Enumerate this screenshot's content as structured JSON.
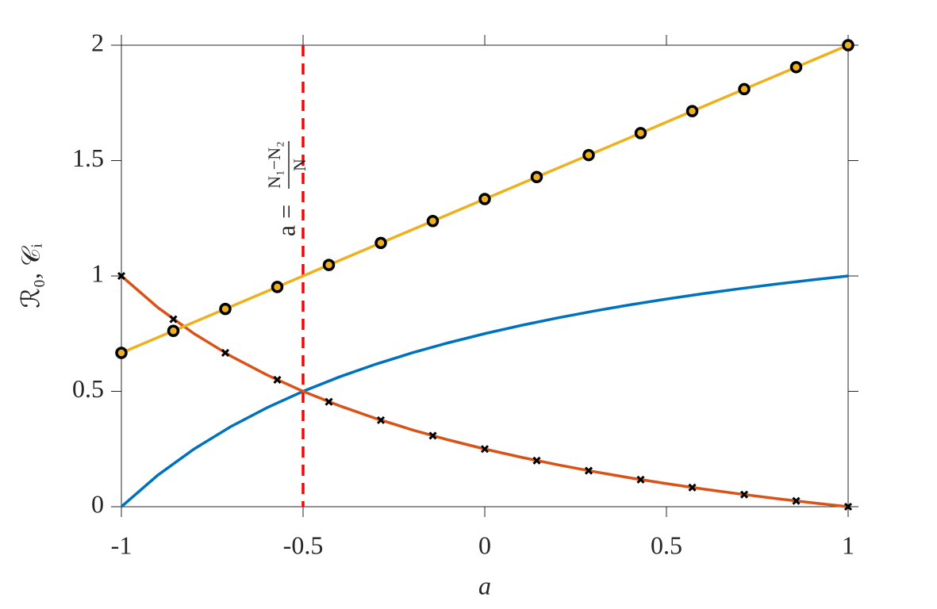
{
  "chart_data": {
    "type": "line",
    "xlabel": "a",
    "ylabel": "ℛ₀, 𝒞ᵢ",
    "xlim": [
      -1,
      1
    ],
    "ylim": [
      0,
      2
    ],
    "xticks": [
      -1,
      -0.5,
      0,
      0.5,
      1
    ],
    "yticks": [
      0,
      0.5,
      1,
      1.5,
      2
    ],
    "vline": {
      "x": -0.5,
      "color": "#ff0000"
    },
    "annotation": {
      "text": "a =",
      "numerator": "N₁−N₂",
      "denominator": "N"
    },
    "series": [
      {
        "color": "#0072bd",
        "marker": "none",
        "x": [
          -1,
          -0.9,
          -0.8,
          -0.7,
          -0.6,
          -0.5,
          -0.4,
          -0.3,
          -0.2,
          -0.1,
          0,
          0.1,
          0.2,
          0.3,
          0.4,
          0.5,
          0.6,
          0.7,
          0.8,
          0.9,
          1
        ],
        "values": [
          0,
          0.1364,
          0.25,
          0.3462,
          0.4286,
          0.5,
          0.5625,
          0.6176,
          0.6667,
          0.7105,
          0.75,
          0.7857,
          0.8182,
          0.8478,
          0.875,
          0.9,
          0.9231,
          0.9444,
          0.9643,
          0.9828,
          1
        ]
      },
      {
        "color": "#d95319",
        "marker": "none",
        "x": [
          -1,
          -0.9,
          -0.8,
          -0.7,
          -0.6,
          -0.5,
          -0.4,
          -0.3,
          -0.2,
          -0.1,
          0,
          0.1,
          0.2,
          0.3,
          0.4,
          0.5,
          0.6,
          0.7,
          0.8,
          0.9,
          1
        ],
        "values": [
          1,
          0.8636,
          0.75,
          0.6538,
          0.5714,
          0.5,
          0.4375,
          0.3824,
          0.3333,
          0.2895,
          0.25,
          0.2143,
          0.1818,
          0.1522,
          0.125,
          0.1,
          0.0769,
          0.0556,
          0.0357,
          0.0172,
          0
        ]
      },
      {
        "color": "#000000",
        "marker": "x",
        "line": false,
        "x": [
          -1,
          -0.857,
          -0.714,
          -0.571,
          -0.429,
          -0.286,
          -0.143,
          0,
          0.143,
          0.286,
          0.429,
          0.571,
          0.714,
          0.857,
          1
        ],
        "values": [
          1,
          0.8125,
          0.6667,
          0.55,
          0.4545,
          0.375,
          0.3077,
          0.25,
          0.2,
          0.1563,
          0.1176,
          0.0833,
          0.0526,
          0.025,
          0
        ]
      },
      {
        "color": "#edb120",
        "marker": "o",
        "x": [
          -1,
          -0.857,
          -0.714,
          -0.571,
          -0.429,
          -0.286,
          -0.143,
          0,
          0.143,
          0.286,
          0.429,
          0.571,
          0.714,
          0.857,
          1
        ],
        "values": [
          0.6667,
          0.7619,
          0.8571,
          0.9524,
          1.0476,
          1.1429,
          1.2381,
          1.3333,
          1.4286,
          1.5238,
          1.619,
          1.7143,
          1.8095,
          1.9048,
          2
        ]
      }
    ]
  }
}
